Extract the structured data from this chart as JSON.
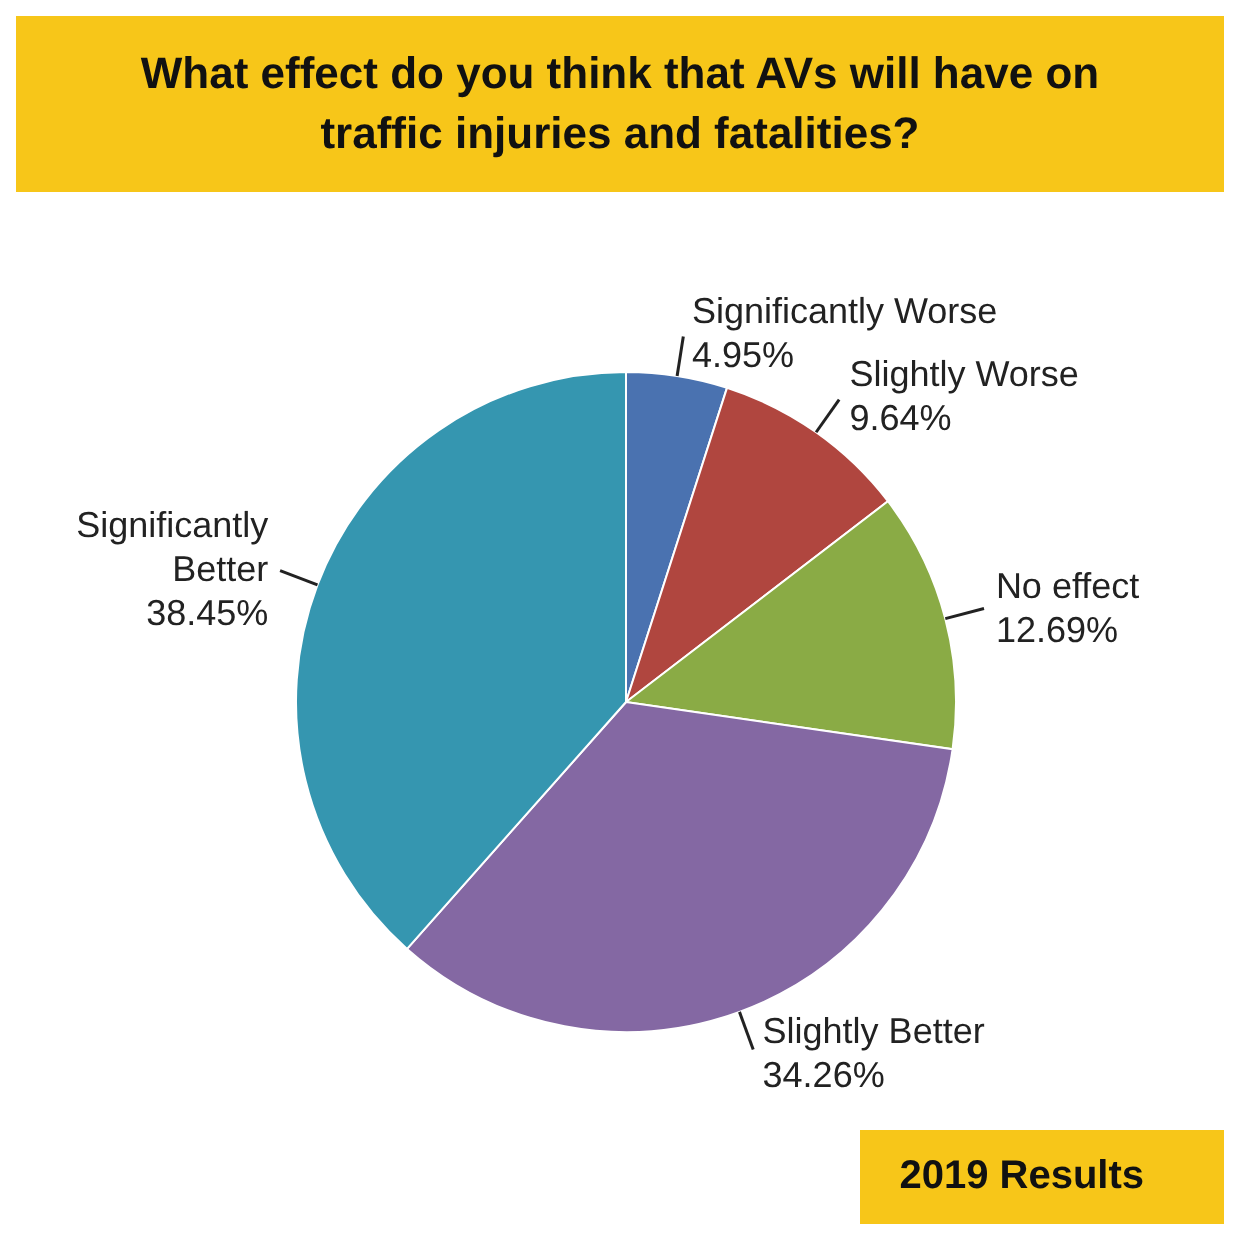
{
  "chart_data": {
    "type": "pie",
    "title": "What effect do you think that AVs will have on traffic injuries and fatalities?",
    "categories": [
      "Significantly Worse",
      "Slightly Worse",
      "No effect",
      "Slightly Better",
      "Significantly Better"
    ],
    "values": [
      4.95,
      9.64,
      12.69,
      34.26,
      38.45
    ],
    "value_labels": [
      "4.95%",
      "9.64%",
      "12.69%",
      "34.26%",
      "38.45%"
    ],
    "colors": [
      "#4a72b0",
      "#b0463f",
      "#8aab45",
      "#8468a3",
      "#3596b0"
    ],
    "annotations": [
      "2019 Results"
    ]
  }
}
